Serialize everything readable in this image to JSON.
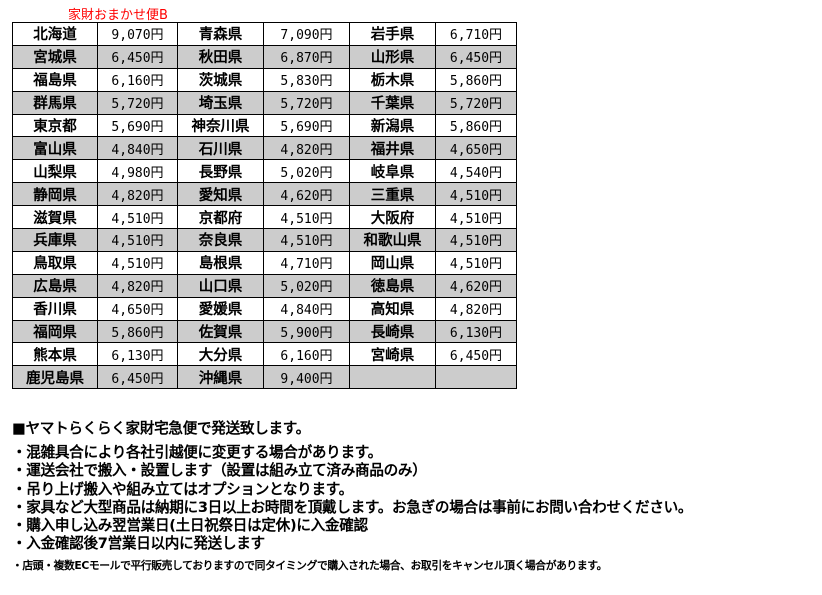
{
  "title": "家財おまかせ便B",
  "rows": [
    [
      [
        "北海道",
        "9,070円"
      ],
      [
        "青森県",
        "7,090円"
      ],
      [
        "岩手県",
        "6,710円"
      ]
    ],
    [
      [
        "宮城県",
        "6,450円"
      ],
      [
        "秋田県",
        "6,870円"
      ],
      [
        "山形県",
        "6,450円"
      ]
    ],
    [
      [
        "福島県",
        "6,160円"
      ],
      [
        "茨城県",
        "5,830円"
      ],
      [
        "栃木県",
        "5,860円"
      ]
    ],
    [
      [
        "群馬県",
        "5,720円"
      ],
      [
        "埼玉県",
        "5,720円"
      ],
      [
        "千葉県",
        "5,720円"
      ]
    ],
    [
      [
        "東京都",
        "5,690円"
      ],
      [
        "神奈川県",
        "5,690円"
      ],
      [
        "新潟県",
        "5,860円"
      ]
    ],
    [
      [
        "富山県",
        "4,840円"
      ],
      [
        "石川県",
        "4,820円"
      ],
      [
        "福井県",
        "4,650円"
      ]
    ],
    [
      [
        "山梨県",
        "4,980円"
      ],
      [
        "長野県",
        "5,020円"
      ],
      [
        "岐阜県",
        "4,540円"
      ]
    ],
    [
      [
        "静岡県",
        "4,820円"
      ],
      [
        "愛知県",
        "4,620円"
      ],
      [
        "三重県",
        "4,510円"
      ]
    ],
    [
      [
        "滋賀県",
        "4,510円"
      ],
      [
        "京都府",
        "4,510円"
      ],
      [
        "大阪府",
        "4,510円"
      ]
    ],
    [
      [
        "兵庫県",
        "4,510円"
      ],
      [
        "奈良県",
        "4,510円"
      ],
      [
        "和歌山県",
        "4,510円"
      ]
    ],
    [
      [
        "鳥取県",
        "4,510円"
      ],
      [
        "島根県",
        "4,710円"
      ],
      [
        "岡山県",
        "4,510円"
      ]
    ],
    [
      [
        "広島県",
        "4,820円"
      ],
      [
        "山口県",
        "5,020円"
      ],
      [
        "徳島県",
        "4,620円"
      ]
    ],
    [
      [
        "香川県",
        "4,650円"
      ],
      [
        "愛媛県",
        "4,840円"
      ],
      [
        "高知県",
        "4,820円"
      ]
    ],
    [
      [
        "福岡県",
        "5,860円"
      ],
      [
        "佐賀県",
        "5,900円"
      ],
      [
        "長崎県",
        "6,130円"
      ]
    ],
    [
      [
        "熊本県",
        "6,130円"
      ],
      [
        "大分県",
        "6,160円"
      ],
      [
        "宮崎県",
        "6,450円"
      ]
    ],
    [
      [
        "鹿児島県",
        "6,450円"
      ],
      [
        "沖縄県",
        "9,400円"
      ],
      [
        "",
        ""
      ]
    ]
  ],
  "notes": {
    "heading": "■ヤマトらくらく家財宅急便で発送致します。",
    "lines": [
      "・混雑具合により各社引越便に変更する場合があります。",
      "・運送会社で搬入・設置します（設置は組み立て済み商品のみ）",
      "・吊り上げ搬入や組み立てはオプションとなります。",
      "・家具など大型商品は納期に3日以上お時間を頂戴します。お急ぎの場合は事前にお問い合わせください。",
      "・購入申し込み翌営業日(土日祝祭日は定休)に入金確認",
      "・入金確認後7営業日以内に発送します"
    ],
    "small": "・店頭・複数ECモールで平行販売しておりますので同タイミングで購入された場合、お取引をキャンセル頂く場合があります。"
  },
  "colors": {
    "title": "#ff0000",
    "alt_row": "#cccccc"
  }
}
